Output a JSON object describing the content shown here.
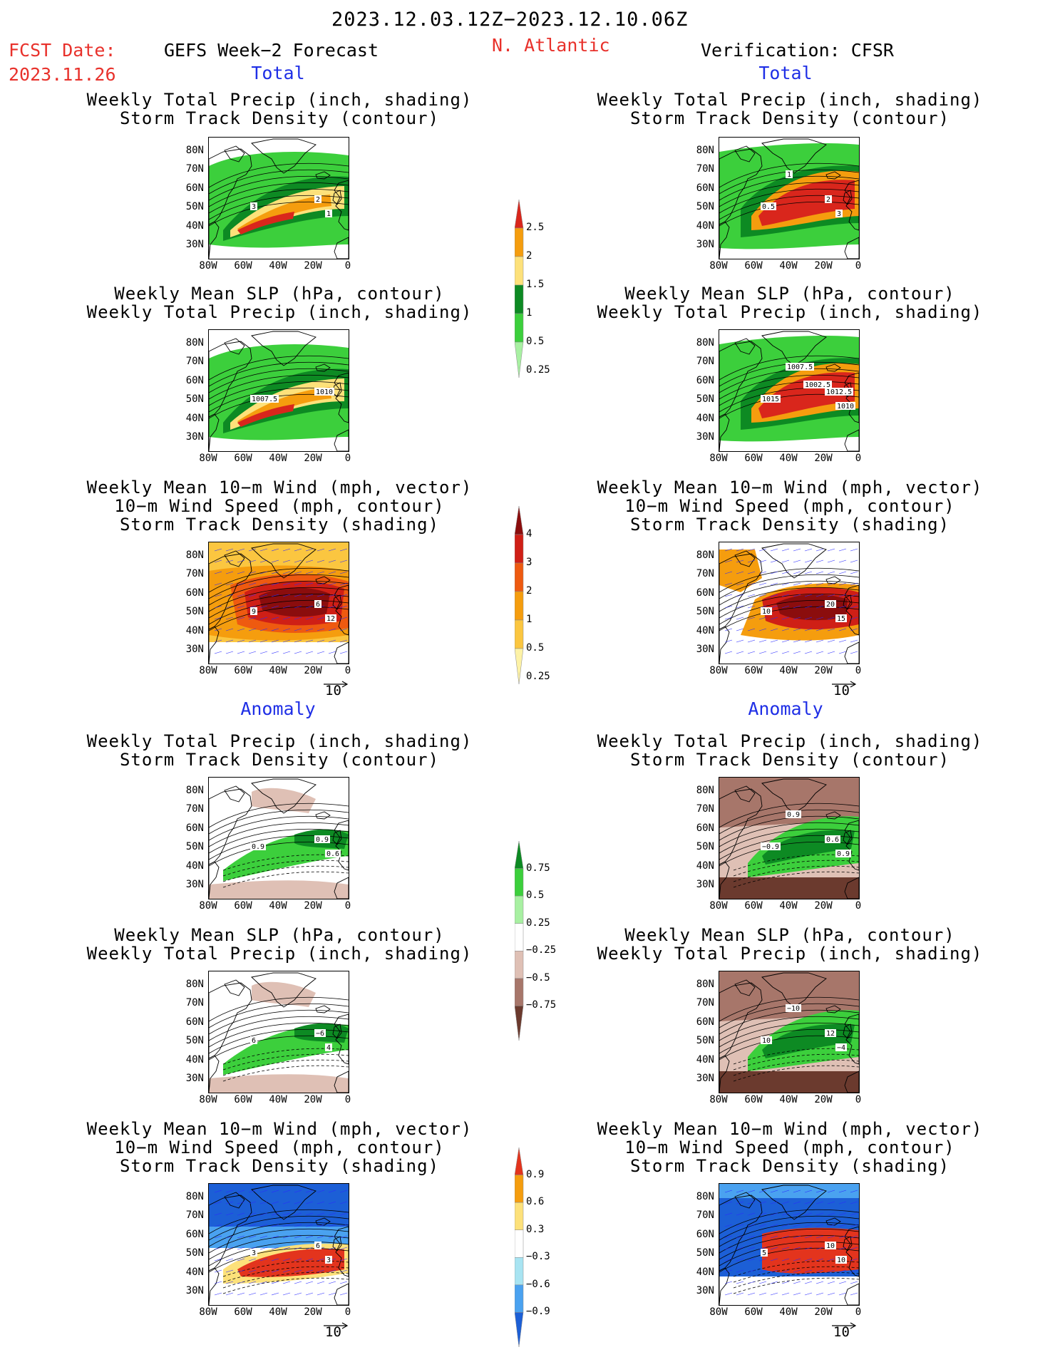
{
  "header": {
    "date_range": "2023.12.03.12Z−2023.12.10.06Z",
    "fcst_label": "FCST Date:",
    "fcst_date": "2023.11.26",
    "left_title": "GEFS Week−2 Forecast",
    "region": "N. Atlantic",
    "right_title": "Verification: CFSR",
    "total_label": "Total",
    "anomaly_label": "Anomaly"
  },
  "titles": {
    "precip_track": [
      "Weekly Total Precip (inch, shading)",
      "Storm Track Density (contour)"
    ],
    "slp_precip": [
      "Weekly Mean SLP (hPa, contour)",
      "Weekly Total Precip (inch, shading)"
    ],
    "wind_track": [
      "Weekly Mean 10−m Wind (mph, vector)",
      "10−m Wind Speed (mph, contour)",
      "Storm Track Density (shading)"
    ]
  },
  "axes": {
    "lat_ticks": [
      "80N",
      "70N",
      "60N",
      "50N",
      "40N",
      "30N"
    ],
    "lon_ticks": [
      "80W",
      "60W",
      "40W",
      "20W",
      "0"
    ]
  },
  "vector_ref": "10",
  "colorbars": {
    "precip_total": {
      "labels": [
        "2.5",
        "2",
        "1.5",
        "1",
        "0.5",
        "0.25"
      ],
      "colors": [
        "#d9261c",
        "#f59d0e",
        "#fde17a",
        "#0d8a23",
        "#3ccf3c",
        "#a8f0a2"
      ]
    },
    "track_total": {
      "labels": [
        "4",
        "3",
        "2",
        "1",
        "0.5",
        "0.25"
      ],
      "colors": [
        "#8b0d0d",
        "#cf1f16",
        "#ee5a10",
        "#f59d0e",
        "#fbc640",
        "#fdf2a6"
      ]
    },
    "precip_anom": {
      "labels": [
        "0.75",
        "0.5",
        "0.25",
        "−0.25",
        "−0.5",
        "−0.75"
      ],
      "colors": [
        "#0d8a23",
        "#3ccf3c",
        "#a8f0a2",
        "#ffffff",
        "#dfc0b5",
        "#a7766a",
        "#6b3a2e"
      ]
    },
    "track_anom": {
      "labels": [
        "0.9",
        "0.6",
        "0.3",
        "−0.3",
        "−0.6",
        "−0.9"
      ],
      "colors": [
        "#e3341d",
        "#f59d0e",
        "#fde17a",
        "#ffffff",
        "#a8e4f2",
        "#4aa2f0",
        "#1c5fd6"
      ]
    }
  },
  "contour_labels": {
    "gefs_total_precip": [
      "3",
      "2",
      "1"
    ],
    "cfsr_total_precip": [
      "0.5",
      "2",
      "3",
      "1"
    ],
    "gefs_total_slp": [
      "1007.5",
      "1010"
    ],
    "cfsr_total_slp": [
      "1015",
      "1012.5",
      "1010",
      "1007.5",
      "1002.5"
    ],
    "gefs_total_wind": [
      "9",
      "6",
      "12"
    ],
    "cfsr_total_wind": [
      "10",
      "20",
      "15"
    ],
    "gefs_anom_precip": [
      "0.9",
      "0.9",
      "0.6"
    ],
    "cfsr_anom_precip": [
      "−0.9",
      "0.6",
      "0.9",
      "0.9"
    ],
    "gefs_anom_slp": [
      "6",
      "−6",
      "4"
    ],
    "cfsr_anom_slp": [
      "10",
      "12",
      "−4",
      "−10"
    ],
    "gefs_anom_wind": [
      "3",
      "6",
      "3"
    ],
    "cfsr_anom_wind": [
      "5",
      "10",
      "10"
    ]
  }
}
